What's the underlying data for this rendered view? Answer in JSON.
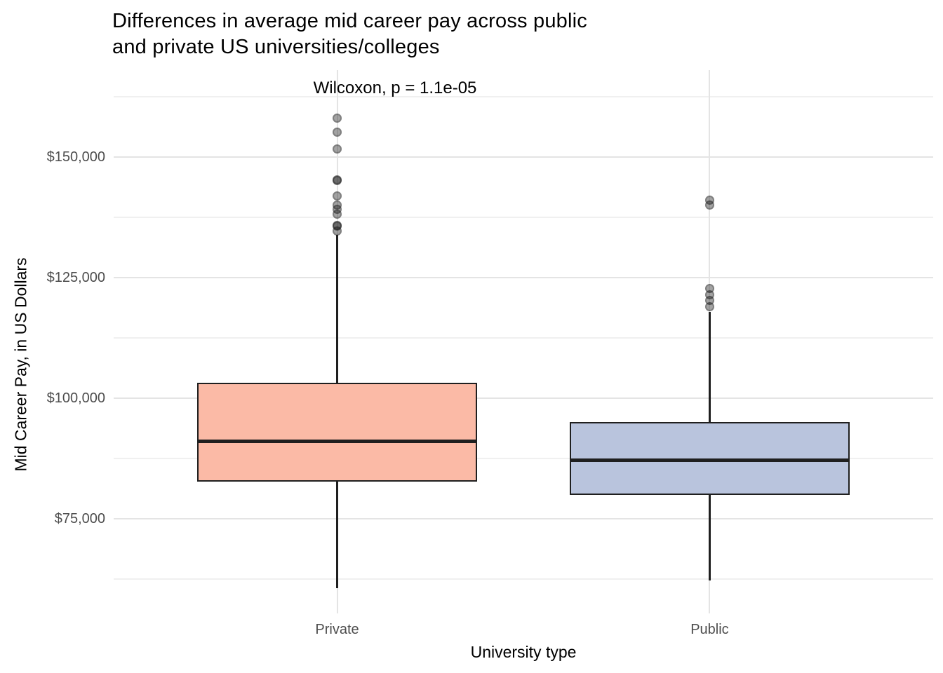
{
  "page": {
    "background": "#FFFFFF"
  },
  "chart_data": {
    "type": "boxplot",
    "title": "Differences in average mid career pay across public\nand private US universities/colleges",
    "annotation": "Wilcoxon, p = 1.1e-05",
    "xlabel": "University type",
    "ylabel": "Mid Career Pay, in US Dollars",
    "categories": [
      "Private",
      "Public"
    ],
    "legend": "none",
    "grid": true,
    "y_axis": {
      "ylim": [
        55400,
        168000
      ],
      "major_ticks": [
        {
          "value": 150000,
          "label": "$150,000"
        },
        {
          "value": 125000,
          "label": "$125,000"
        },
        {
          "value": 100000,
          "label": "$100,000"
        },
        {
          "value": 75000,
          "label": "$75,000"
        }
      ],
      "minor_tick_values": [
        162500,
        137500,
        112500,
        87500,
        62500
      ]
    },
    "series": [
      {
        "name": "Private",
        "fill_color": "#FBBAA6",
        "whisker_low": 60600,
        "q1": 82700,
        "median": 91100,
        "q3": 103200,
        "whisker_high": 133900,
        "outliers": [
          158100,
          155100,
          151700,
          145300,
          145100,
          142000,
          140000,
          139100,
          138200,
          135900,
          135700,
          134600
        ]
      },
      {
        "name": "Public",
        "fill_color": "#B9C4DD",
        "whisker_low": 62200,
        "q1": 79900,
        "median": 87200,
        "q3": 95100,
        "whisker_high": 117900,
        "outliers": [
          141000,
          140100,
          122800,
          121500,
          120300,
          118900
        ]
      }
    ],
    "style_colors": {
      "box_stroke": "#1F1F1F",
      "grid_major": "#E4E4E4",
      "grid_minor": "#F0F0F0",
      "tick_label_color": "#4D4D4D",
      "axis_title_color": "#000000",
      "outlier_color": "#4D4D4D"
    }
  }
}
